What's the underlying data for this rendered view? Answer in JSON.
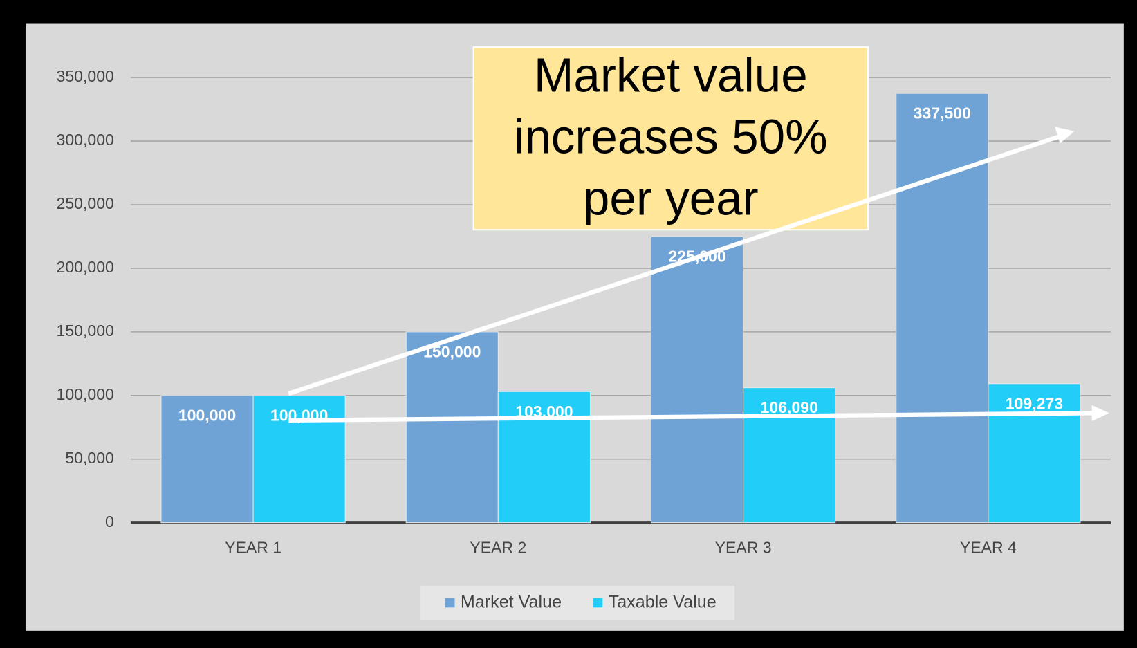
{
  "chart_data": {
    "type": "bar",
    "categories": [
      "YEAR 1",
      "YEAR 2",
      "YEAR 3",
      "YEAR 4"
    ],
    "series": [
      {
        "name": "Market Value",
        "color": "#6fa3d6",
        "values": [
          100000,
          150000,
          225000,
          337500
        ],
        "value_labels": [
          "100,000",
          "150,000",
          "225,000",
          "337,500"
        ]
      },
      {
        "name": "Taxable Value",
        "color": "#22cdf7",
        "values": [
          100000,
          103000,
          106090,
          109273
        ],
        "value_labels": [
          "100,000",
          "103,000",
          "106,090",
          "109,273"
        ]
      }
    ],
    "ylim": [
      0,
      350000
    ],
    "yticks": [
      0,
      {
        "value": 50000,
        "label": "50,000"
      },
      {
        "value": 100000,
        "label": "100,000"
      },
      {
        "value": 150000,
        "label": "150,000"
      },
      {
        "value": 200000,
        "label": "200,000"
      },
      {
        "value": 250000,
        "label": "250,000"
      },
      {
        "value": 300000,
        "label": "300,000"
      },
      {
        "value": 350000,
        "label": "350,000"
      }
    ],
    "grid": true,
    "legend": "bottom",
    "annotation": [
      "Market value",
      "increases 50%",
      "per year"
    ]
  }
}
